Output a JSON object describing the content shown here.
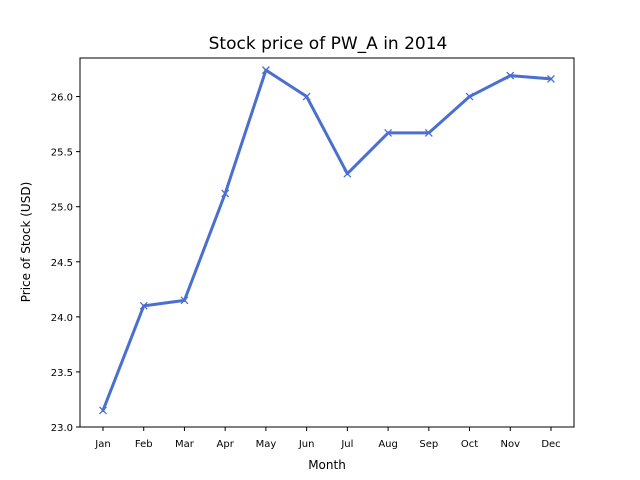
{
  "chart_data": {
    "type": "line",
    "title": "Stock price of PW_A in 2014",
    "xlabel": "Month",
    "ylabel": "Price of Stock (USD)",
    "categories": [
      "Jan",
      "Feb",
      "Mar",
      "Apr",
      "May",
      "Jun",
      "Jul",
      "Aug",
      "Sep",
      "Oct",
      "Nov",
      "Dec"
    ],
    "series": [
      {
        "values": [
          23.15,
          24.1,
          24.15,
          25.12,
          26.24,
          26.0,
          25.3,
          25.67,
          25.67,
          26.0,
          26.19,
          26.16
        ],
        "color": "#4a6fd0",
        "marker": "x"
      }
    ],
    "yticks": [
      "23.0",
      "23.5",
      "24.0",
      "24.5",
      "25.0",
      "25.5",
      "26.0"
    ],
    "ylim": [
      23.0,
      26.35
    ],
    "grid": false,
    "legend": "none"
  }
}
